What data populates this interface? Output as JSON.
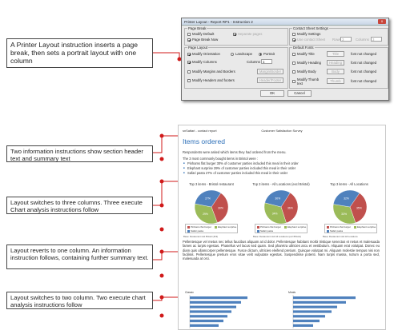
{
  "callouts": [
    {
      "text": "A Printer Layout instruction inserts a page break, then sets a portrait layout with one column"
    },
    {
      "text": "Two information instructions show section header text and summary text"
    },
    {
      "text": "Layout switches to three columns. Three execute Chart analysis instructions follow"
    },
    {
      "text": "Layout reverts to one column. An information instruction follows, containing further summary text."
    },
    {
      "text": "Layout switches to two column. Two execute chart analysis instructions follow"
    }
  ],
  "dialog": {
    "title": "Printer Layout - Report RP1 - Instruction 2",
    "close_label": "x",
    "page_break": {
      "title": "Page Break",
      "modify_default": "Modify Default",
      "page_break_now": "Page Break Now",
      "separate_pages": "Separate pages"
    },
    "contact_sheet": {
      "title": "Contact Sheet Settings",
      "modify_settings": "Modify Settings",
      "use_contact_sheet": "Use contact Sheet",
      "rows_label": "Rows",
      "rows_value": "3",
      "columns_label": "Columns",
      "columns_value": "3"
    },
    "page_layout": {
      "title": "Page Layout",
      "modify_orientation": "Modify Orientation",
      "landscape": "Landscape",
      "portrait": "Portrait",
      "modify_columns": "Modify Columns",
      "columns_label": "Columns",
      "columns_value": "1",
      "modify_margins": "Modify Margins and Borders",
      "margins_button": "Margin/Border",
      "modify_headers": "Modify Headers and footers",
      "headers_button": "Header/Footer"
    },
    "default_fonts": {
      "title": "Default Fonts",
      "rows": [
        {
          "label": "Modify Title",
          "button": "Title",
          "status": "font not changed"
        },
        {
          "label": "Modify Heading",
          "button": "Heading",
          "status": "font not changed"
        },
        {
          "label": "Modify Body",
          "button": "Body",
          "status": "font not changed"
        },
        {
          "label": "Modify Thumb text",
          "button": "Thumb",
          "status": "font not changed"
        }
      ]
    },
    "ok_label": "OK",
    "cancel_label": "Cancel"
  },
  "report": {
    "header_left": "snSattari - contact report",
    "header_center": "Customer Satisfaction Survey",
    "header_right": "",
    "title": "Items ordered",
    "intro": "Respondents were asked which items they had ordered from the menu.",
    "summary_lead": "The 3 most commonly bought items in Bristol were :",
    "bullets": [
      "Pinhams flat burger 30% of customer parties included this meal in their order",
      "Elephant surprise 29% of customer parties included this meal in their order",
      "Safari pasta 27% of customer parties included this meal in their order"
    ],
    "paragraph": "Pellentesque vel metus nec tellus faucibus aliquam at id dolor. Pellentesque habitant morbi tristique senectus et netus et malesuada fames ac turpis egestas. Phasellus vel lacus sed quam. Sed pharetra ultricies arcu et vestibulum. Aliquam erat volutpat. Donec eu diam quis ullamcorper pellentesque. Fusce dictum, ultricies eleifend pretium. Quisque volutpat mi. Aliquam molestie tempus nisi non facilisis. Pellentesque pretium eros vitae velit vulputate egestas. Suspendisse potenti. Nam turpis massa, rutrum a porta sed, malesuada at orci.",
    "bar_chart_titles": [
      "Classic",
      "Meals"
    ]
  },
  "chart_data": [
    {
      "type": "pie",
      "title": "Top 3 items - Bristol restaurant",
      "categories": [
        "Pinhams flat burger",
        "Elephant surprise",
        "Safari pasta"
      ],
      "values": [
        30,
        29,
        27
      ],
      "colors": [
        "#c0504d",
        "#9bbb59",
        "#4f81bd"
      ],
      "base": "Base: Restaurant visit Bristol (419)"
    },
    {
      "type": "pie",
      "title": "Top 3 items - All Locations (excl Bristol)",
      "categories": [
        "Pinhams flat burger",
        "Elephant surprise",
        "Safari pasta"
      ],
      "values": [
        36,
        34,
        30
      ],
      "colors": [
        "#c0504d",
        "#9bbb59",
        "#4f81bd"
      ],
      "base": "Base: Restaurant visit All Locations (excl Bristol)"
    },
    {
      "type": "pie",
      "title": "Top 3 items - All Locations",
      "categories": [
        "Pinhams flat burger",
        "Elephant surprise",
        "Safari pasta"
      ],
      "values": [
        35,
        33,
        32
      ],
      "colors": [
        "#c0504d",
        "#9bbb59",
        "#4f81bd"
      ],
      "base": "Base: Restaurant visit All Locations"
    },
    {
      "type": "bar",
      "title": "Classic",
      "orientation": "horizontal",
      "values": [
        72,
        64,
        58,
        52,
        47,
        42,
        36
      ],
      "colors": [
        "#4f81bd",
        "#4f81bd",
        "#4f81bd",
        "#4f81bd",
        "#4f81bd",
        "#4f81bd",
        "#4f81bd"
      ]
    },
    {
      "type": "bar",
      "title": "Meals",
      "orientation": "horizontal",
      "values": [
        78,
        66,
        55,
        48,
        40,
        33,
        25
      ],
      "colors": [
        "#4f81bd",
        "#4f81bd",
        "#4f81bd",
        "#4f81bd",
        "#4f81bd",
        "#4f81bd",
        "#4f81bd"
      ]
    }
  ]
}
